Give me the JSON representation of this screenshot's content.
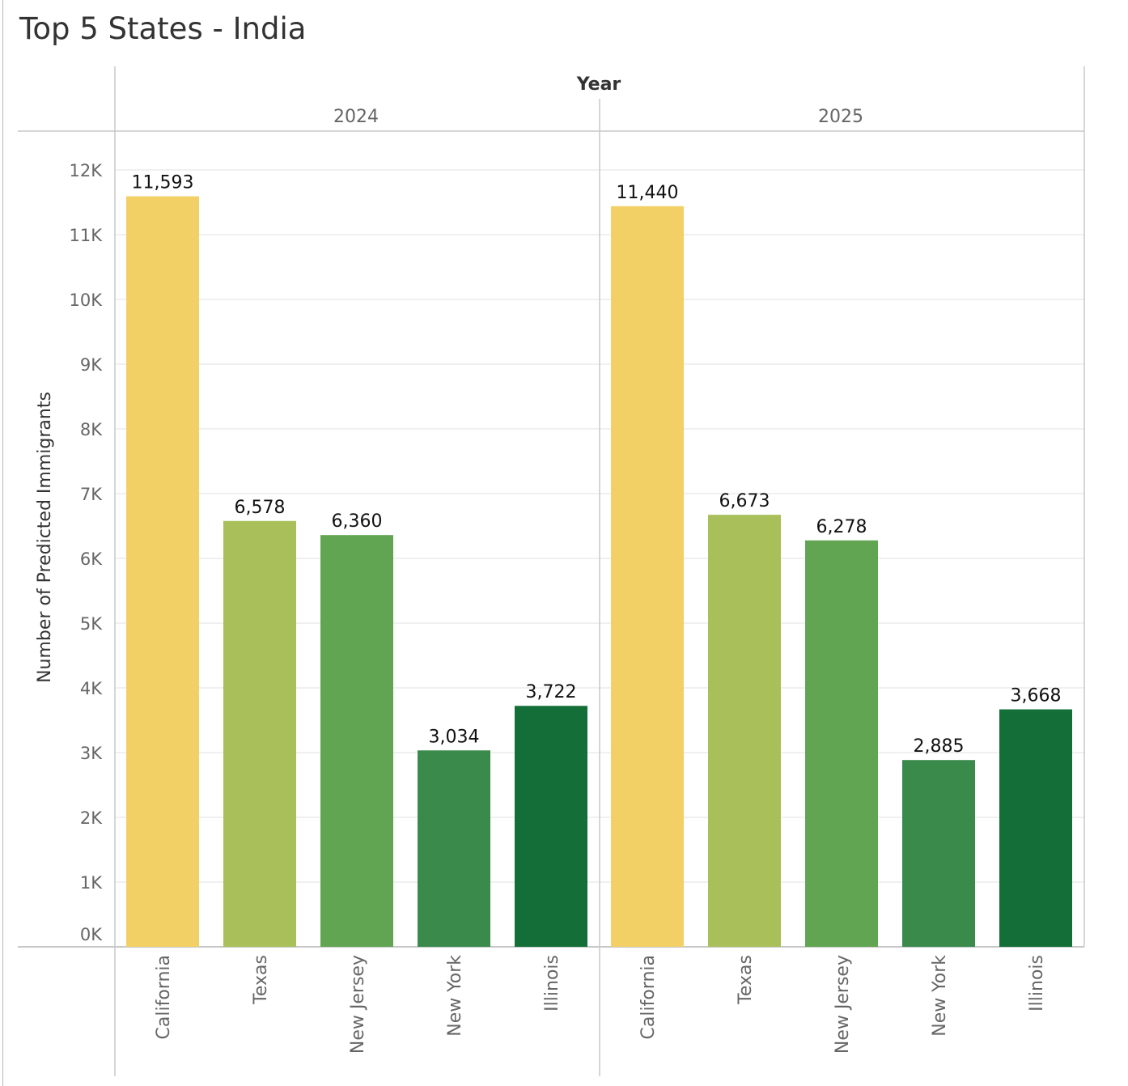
{
  "chart_data": {
    "type": "bar",
    "title": "Top 5 States - India",
    "column_header": "Year",
    "ylabel": "Number of Predicted Immigrants",
    "ylim": [
      0,
      12000
    ],
    "y_ticks": [
      "0K",
      "1K",
      "2K",
      "3K",
      "4K",
      "5K",
      "6K",
      "7K",
      "8K",
      "9K",
      "10K",
      "11K",
      "12K"
    ],
    "categories": [
      "California",
      "Texas",
      "New Jersey",
      "New York",
      "Illinois"
    ],
    "colors": [
      "#f2d065",
      "#a8bf5a",
      "#61a553",
      "#3a8a4b",
      "#146e38"
    ],
    "panels": [
      {
        "year": "2024",
        "values": [
          11593,
          6578,
          6360,
          3034,
          3722
        ],
        "labels": [
          "11,593",
          "6,578",
          "6,360",
          "3,034",
          "3,722"
        ]
      },
      {
        "year": "2025",
        "values": [
          11440,
          6673,
          6278,
          2885,
          3668
        ],
        "labels": [
          "11,440",
          "6,673",
          "6,278",
          "2,885",
          "3,668"
        ]
      }
    ],
    "grid": true,
    "legend": "none"
  }
}
